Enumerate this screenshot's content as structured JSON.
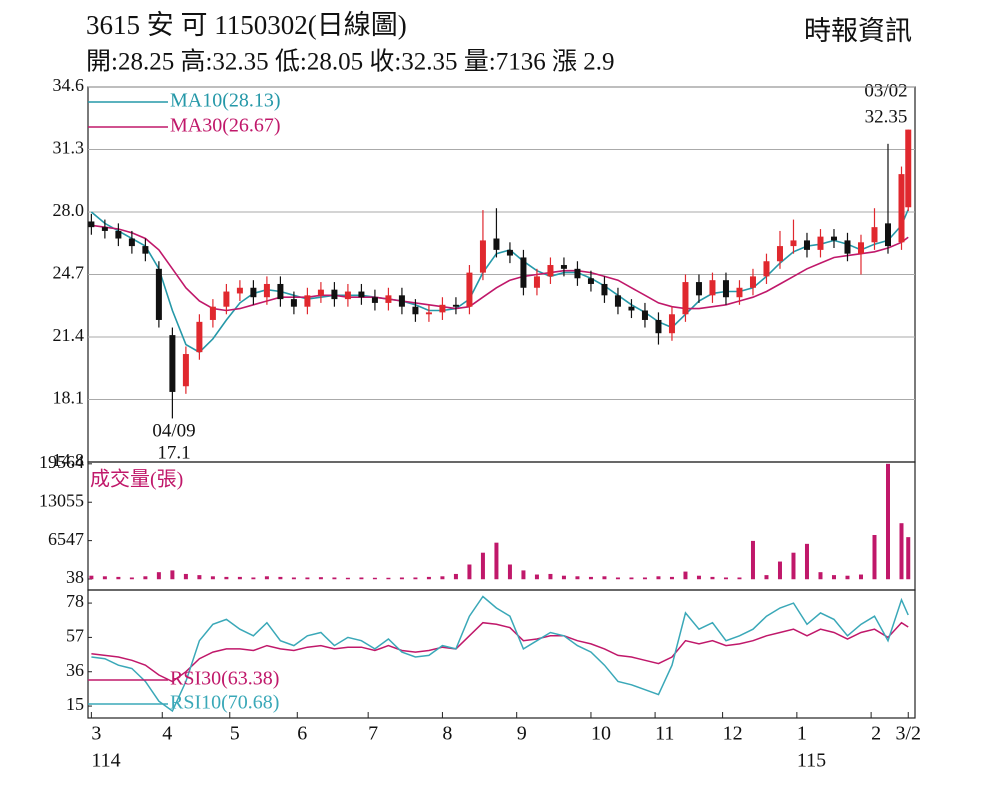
{
  "chart_data": [
    {
      "type": "candlestick",
      "title": "3615  安  可 1150302(日線圖)",
      "subtitle": "開:28.25 高:32.35 低:28.05 收:32.35 量:7136 漲 2.9",
      "source": "時報資訊",
      "high_label": {
        "date": "03/02",
        "value": 32.35
      },
      "low_label": {
        "date": "04/09",
        "value": 17.1
      },
      "x": [
        0,
        4,
        8,
        12,
        16,
        20,
        24,
        28,
        32,
        36,
        40,
        44,
        48,
        52,
        56,
        60,
        64,
        68,
        72,
        76,
        80,
        84,
        88,
        92,
        96,
        100,
        104,
        108,
        112,
        116,
        120,
        124,
        128,
        132,
        136,
        140,
        144,
        148,
        152,
        156,
        160,
        164,
        168,
        172,
        176,
        180,
        184,
        188,
        192,
        196,
        200,
        204,
        208,
        212,
        216,
        220,
        224,
        228,
        232,
        236,
        240,
        242
      ],
      "open": [
        27.5,
        27.2,
        27.0,
        26.6,
        26.2,
        25.0,
        21.5,
        18.8,
        20.6,
        22.3,
        23.0,
        23.7,
        24.0,
        23.5,
        24.2,
        23.4,
        23.0,
        23.6,
        23.9,
        23.4,
        23.8,
        23.5,
        23.2,
        23.6,
        23.0,
        22.6,
        22.7,
        23.1,
        23.0,
        24.8,
        26.6,
        26.0,
        25.6,
        24.0,
        24.6,
        25.2,
        25.0,
        24.5,
        24.2,
        23.6,
        23.0,
        22.8,
        22.3,
        21.6,
        22.6,
        24.3,
        23.6,
        24.4,
        23.5,
        24.0,
        24.6,
        25.4,
        26.2,
        26.5,
        26.0,
        26.7,
        26.5,
        25.8,
        26.4,
        27.4,
        26.4,
        28.25
      ],
      "high": [
        27.9,
        27.6,
        27.4,
        27.0,
        26.6,
        25.4,
        21.9,
        20.9,
        22.6,
        23.4,
        24.2,
        24.4,
        24.4,
        24.6,
        24.6,
        23.8,
        24.0,
        24.3,
        24.3,
        24.2,
        24.2,
        23.9,
        24.0,
        24.0,
        23.4,
        23.1,
        23.5,
        23.5,
        25.2,
        28.1,
        28.2,
        26.4,
        26.0,
        25.0,
        25.6,
        25.6,
        25.4,
        24.9,
        24.6,
        24.0,
        23.4,
        23.2,
        22.7,
        23.0,
        24.7,
        24.7,
        24.8,
        24.8,
        24.4,
        25.0,
        25.8,
        27.0,
        27.6,
        26.9,
        27.1,
        27.1,
        26.9,
        26.8,
        28.2,
        31.6,
        30.4,
        32.35
      ],
      "low": [
        26.8,
        26.6,
        26.2,
        25.8,
        25.4,
        21.9,
        17.1,
        18.4,
        20.2,
        21.9,
        22.6,
        23.3,
        23.1,
        23.1,
        23.0,
        22.6,
        22.6,
        23.2,
        23.0,
        23.0,
        23.1,
        22.8,
        22.8,
        22.6,
        22.2,
        22.2,
        22.3,
        22.6,
        22.6,
        24.4,
        25.6,
        25.3,
        23.6,
        23.6,
        24.2,
        24.6,
        24.1,
        23.8,
        23.2,
        22.6,
        22.4,
        21.9,
        21.0,
        21.2,
        22.2,
        23.2,
        23.2,
        23.1,
        23.1,
        23.6,
        24.2,
        25.0,
        25.8,
        25.6,
        25.6,
        26.1,
        25.4,
        24.7,
        26.0,
        25.8,
        26.0,
        28.05
      ],
      "close": [
        27.2,
        27.0,
        26.6,
        26.2,
        25.8,
        22.3,
        18.5,
        20.5,
        22.2,
        23.0,
        23.8,
        24.0,
        23.5,
        24.2,
        23.4,
        23.0,
        23.6,
        23.9,
        23.4,
        23.8,
        23.5,
        23.2,
        23.6,
        23.0,
        22.6,
        22.7,
        23.1,
        23.0,
        24.8,
        26.5,
        26.0,
        25.7,
        24.0,
        24.6,
        25.2,
        25.0,
        24.5,
        24.2,
        23.6,
        23.0,
        22.8,
        22.3,
        21.6,
        22.6,
        24.3,
        23.6,
        24.4,
        23.5,
        24.0,
        24.6,
        25.4,
        26.2,
        26.5,
        26.0,
        26.7,
        26.5,
        25.8,
        26.4,
        27.2,
        26.2,
        30.0,
        32.35
      ],
      "up_color": "#e0282e",
      "down_color": "#111111",
      "lines": [
        {
          "name": "MA10(28.13)",
          "color": "#2598a8",
          "values": [
            28.0,
            27.4,
            27.0,
            26.6,
            26.2,
            25.0,
            22.8,
            21.0,
            20.6,
            21.3,
            22.3,
            23.2,
            23.7,
            23.9,
            23.8,
            23.6,
            23.4,
            23.5,
            23.6,
            23.6,
            23.6,
            23.5,
            23.4,
            23.3,
            23.1,
            22.8,
            22.8,
            22.9,
            23.4,
            24.8,
            25.8,
            26.0,
            25.4,
            24.9,
            24.6,
            24.8,
            24.8,
            24.5,
            24.1,
            23.6,
            23.1,
            22.7,
            22.2,
            21.9,
            22.6,
            23.3,
            23.7,
            23.8,
            23.8,
            24.0,
            24.6,
            25.3,
            25.9,
            26.2,
            26.3,
            26.5,
            26.3,
            26.0,
            26.3,
            26.5,
            27.3,
            28.13
          ]
        },
        {
          "name": "MA30(26.67)",
          "color": "#c0186a",
          "values": [
            27.3,
            27.2,
            27.1,
            26.9,
            26.6,
            26.0,
            25.0,
            24.0,
            23.3,
            22.9,
            22.8,
            22.9,
            23.1,
            23.3,
            23.5,
            23.5,
            23.5,
            23.6,
            23.6,
            23.5,
            23.5,
            23.5,
            23.4,
            23.3,
            23.2,
            23.1,
            23.0,
            22.9,
            23.0,
            23.5,
            24.0,
            24.4,
            24.6,
            24.7,
            24.8,
            24.9,
            24.9,
            24.8,
            24.6,
            24.4,
            24.0,
            23.6,
            23.2,
            23.0,
            22.9,
            22.9,
            23.0,
            23.1,
            23.3,
            23.5,
            23.8,
            24.2,
            24.6,
            25.0,
            25.3,
            25.6,
            25.7,
            25.8,
            25.9,
            26.1,
            26.4,
            26.67
          ]
        }
      ],
      "legend": "upper left",
      "xlim": [
        -1,
        244
      ],
      "xticks": [
        {
          "value": 0,
          "label": "3"
        },
        {
          "value": 21,
          "label": "4"
        },
        {
          "value": 41,
          "label": "5"
        },
        {
          "value": 61,
          "label": "6"
        },
        {
          "value": 82,
          "label": "7"
        },
        {
          "value": 104,
          "label": "8"
        },
        {
          "value": 126,
          "label": "9"
        },
        {
          "value": 148,
          "label": "10"
        },
        {
          "value": 167,
          "label": "11"
        },
        {
          "value": 187,
          "label": "12"
        },
        {
          "value": 209,
          "label": "1"
        },
        {
          "value": 231,
          "label": "2"
        },
        {
          "value": 242,
          "label": "3/2"
        }
      ],
      "year_labels": [
        {
          "value": 0,
          "label": "114"
        },
        {
          "value": 209,
          "label": "115"
        }
      ],
      "ylim": [
        14.8,
        34.6
      ],
      "yticks": [
        34.6,
        31.3,
        {
          "value": 28,
          "label": "28.0"
        },
        24.7,
        21.4,
        18.1,
        14.8
      ],
      "grid": true
    },
    {
      "type": "bar",
      "title": "成交量(張)",
      "color": "#c0186a",
      "values": [
        600,
        500,
        400,
        300,
        500,
        1200,
        1500,
        900,
        700,
        500,
        400,
        400,
        300,
        500,
        400,
        300,
        300,
        350,
        300,
        250,
        300,
        250,
        250,
        300,
        300,
        400,
        500,
        900,
        2500,
        4500,
        6200,
        2500,
        1500,
        800,
        900,
        600,
        500,
        400,
        500,
        300,
        300,
        300,
        500,
        400,
        1300,
        600,
        400,
        300,
        300,
        6500,
        700,
        3000,
        4500,
        6000,
        1200,
        700,
        600,
        800,
        7500,
        19564,
        9500,
        7136
      ],
      "ylim": [
        -1822,
        19874
      ],
      "yticks": [
        38,
        6547,
        13055,
        19564
      ]
    },
    {
      "type": "line",
      "series": [
        {
          "name": "RSI30(63.38)",
          "color": "#c0186a",
          "values": [
            47,
            46,
            45,
            43,
            40,
            34,
            30,
            36,
            44,
            48,
            50,
            50,
            49,
            52,
            50,
            49,
            51,
            52,
            50,
            51,
            51,
            49,
            52,
            49,
            48,
            49,
            51,
            50,
            58,
            66,
            65,
            63,
            55,
            56,
            58,
            58,
            55,
            53,
            50,
            46,
            45,
            43,
            41,
            45,
            55,
            53,
            55,
            52,
            53,
            55,
            58,
            60,
            62,
            58,
            62,
            60,
            56,
            60,
            62,
            57,
            66,
            63.38
          ]
        },
        {
          "name": "RSI10(70.68)",
          "color": "#3aa8b8",
          "values": [
            45,
            44,
            40,
            38,
            30,
            18,
            12,
            30,
            55,
            65,
            68,
            62,
            58,
            66,
            55,
            52,
            58,
            60,
            52,
            57,
            55,
            50,
            56,
            48,
            45,
            46,
            52,
            50,
            70,
            82,
            75,
            70,
            50,
            55,
            60,
            58,
            52,
            48,
            40,
            30,
            28,
            25,
            22,
            40,
            72,
            62,
            66,
            55,
            58,
            62,
            70,
            75,
            78,
            65,
            72,
            68,
            58,
            65,
            70,
            55,
            80,
            70.68
          ]
        }
      ],
      "legend": "lower left",
      "ylim": [
        7.7,
        86
      ],
      "yticks": [
        15,
        36,
        57,
        78
      ]
    }
  ]
}
